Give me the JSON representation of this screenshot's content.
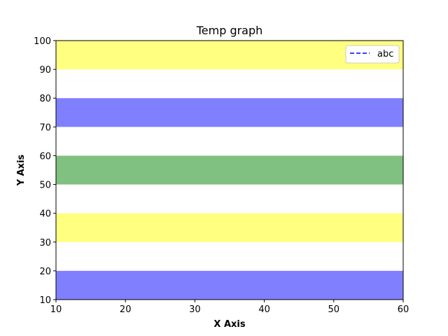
{
  "chart_data": {
    "type": "area",
    "title": "Temp graph",
    "xlabel": "X Axis",
    "ylabel": "Y Axis",
    "xlim": [
      10,
      60
    ],
    "ylim": [
      10,
      100
    ],
    "xticks": [
      10,
      20,
      30,
      40,
      50,
      60
    ],
    "yticks": [
      10,
      20,
      30,
      40,
      50,
      60,
      70,
      80,
      90,
      100
    ],
    "grid": false,
    "legend": {
      "placement": "top-right",
      "entries": [
        {
          "label": "abc",
          "color": "#0000ff",
          "style": "dashed"
        }
      ]
    },
    "bands": [
      {
        "y_from": 10,
        "y_to": 20,
        "color": "#8080ff"
      },
      {
        "y_from": 30,
        "y_to": 40,
        "color": "#ffff80"
      },
      {
        "y_from": 50,
        "y_to": 60,
        "color": "#80c080"
      },
      {
        "y_from": 70,
        "y_to": 80,
        "color": "#8080ff"
      },
      {
        "y_from": 90,
        "y_to": 100,
        "color": "#ffff80"
      }
    ]
  }
}
